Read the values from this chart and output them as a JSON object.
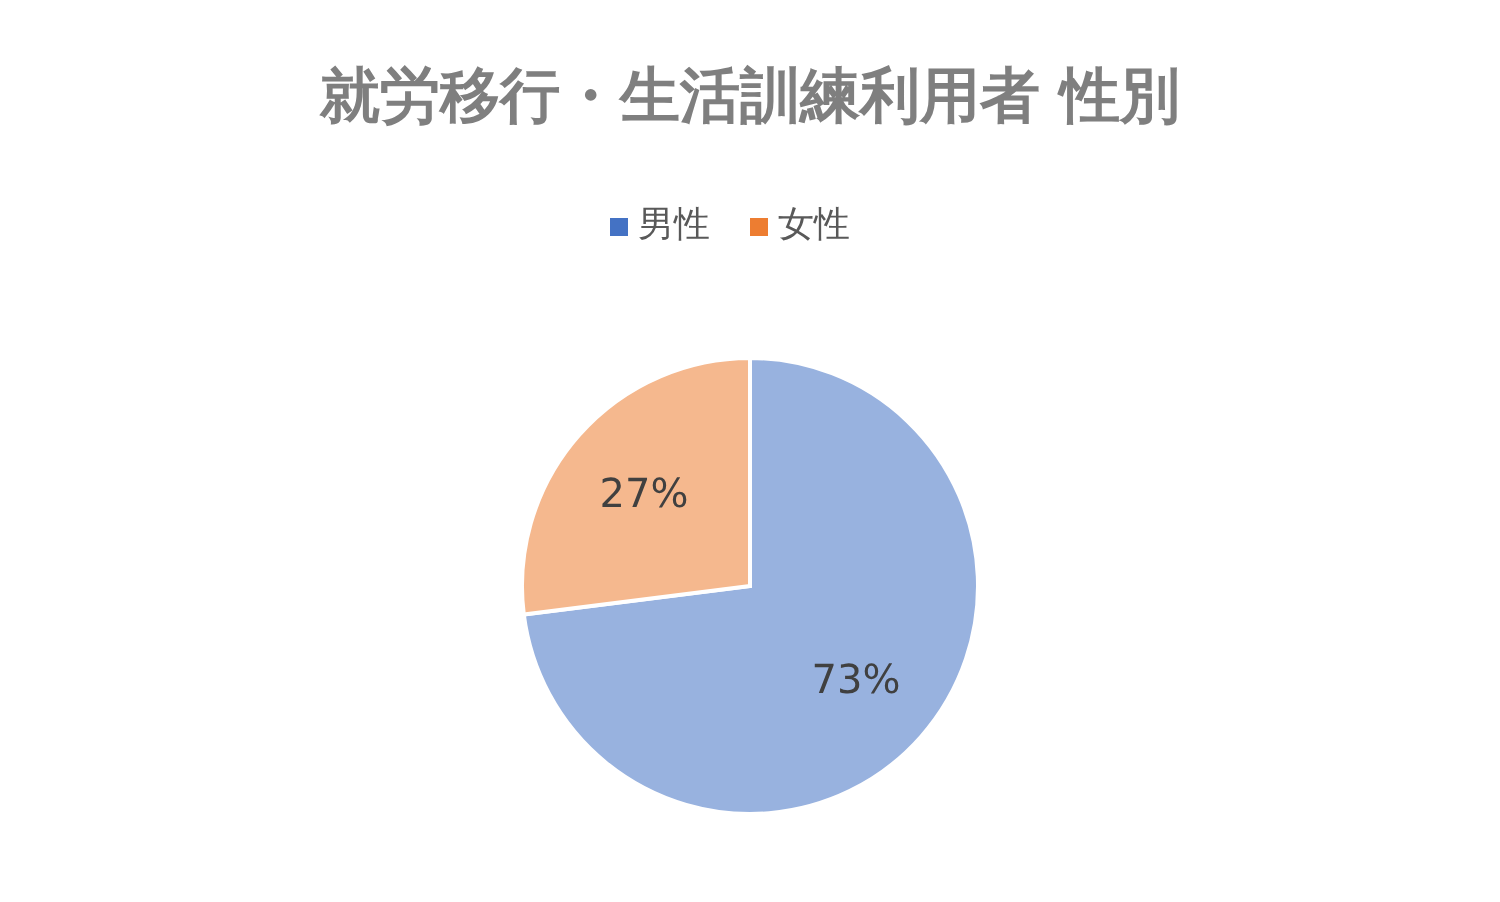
{
  "chart_data": {
    "type": "pie",
    "title": "就労移行・生活訓練利用者 性別",
    "categories": [
      "男性",
      "女性"
    ],
    "values": [
      73,
      27
    ],
    "value_labels": [
      "73%",
      "27%"
    ],
    "colors": [
      "#4472c4",
      "#ed7d31"
    ],
    "legend": "top"
  }
}
